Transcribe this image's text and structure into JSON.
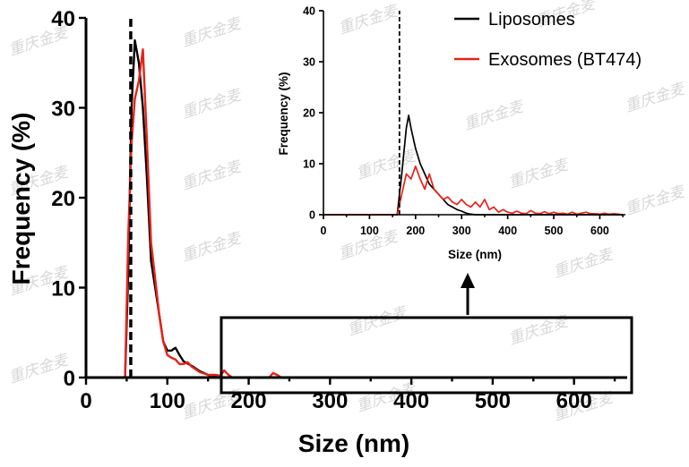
{
  "chart_data": [
    {
      "id": "main",
      "type": "line",
      "xlabel": "Size (nm)",
      "ylabel": "Frequency (%)",
      "xlim": [
        0,
        650
      ],
      "ylim": [
        0,
        40
      ],
      "xticks": [
        0,
        100,
        200,
        300,
        400,
        500,
        600
      ],
      "yticks": [
        0,
        10,
        20,
        30,
        40
      ],
      "xtick_labels": [
        "0",
        "100",
        "200",
        "300",
        "400",
        "500",
        "600"
      ],
      "ytick_labels": [
        "0",
        "10",
        "20",
        "30",
        "40"
      ],
      "reference_line_x": 55,
      "series": [
        {
          "name": "Liposomes",
          "color": "#000000",
          "points": [
            [
              0,
              0
            ],
            [
              48,
              0
            ],
            [
              52,
              12
            ],
            [
              56,
              30
            ],
            [
              60,
              37.5
            ],
            [
              65,
              35
            ],
            [
              70,
              30
            ],
            [
              75,
              22
            ],
            [
              80,
              13
            ],
            [
              85,
              10
            ],
            [
              90,
              7
            ],
            [
              95,
              4
            ],
            [
              100,
              3
            ],
            [
              105,
              3
            ],
            [
              110,
              3.3
            ],
            [
              115,
              2.5
            ],
            [
              120,
              1.8
            ],
            [
              130,
              1.3
            ],
            [
              140,
              0.7
            ],
            [
              150,
              0.3
            ],
            [
              160,
              0.1
            ],
            [
              170,
              0
            ],
            [
              650,
              0
            ]
          ]
        },
        {
          "name": "Exosomes (BT474)",
          "color": "#e8221b",
          "points": [
            [
              0,
              0
            ],
            [
              48,
              0
            ],
            [
              52,
              16
            ],
            [
              56,
              26
            ],
            [
              60,
              31
            ],
            [
              65,
              33
            ],
            [
              70,
              36.5
            ],
            [
              75,
              26
            ],
            [
              80,
              15
            ],
            [
              85,
              11
            ],
            [
              90,
              7
            ],
            [
              95,
              4
            ],
            [
              100,
              2.5
            ],
            [
              105,
              2.2
            ],
            [
              110,
              2
            ],
            [
              115,
              1.5
            ],
            [
              120,
              1.5
            ],
            [
              125,
              1.7
            ],
            [
              130,
              1.2
            ],
            [
              140,
              0.6
            ],
            [
              150,
              0.3
            ],
            [
              160,
              0.3
            ],
            [
              165,
              0.2
            ],
            [
              170,
              0.8
            ],
            [
              175,
              0.3
            ],
            [
              180,
              0
            ],
            [
              225,
              0
            ],
            [
              230,
              0.5
            ],
            [
              235,
              0.3
            ],
            [
              240,
              0
            ],
            [
              650,
              0
            ]
          ]
        }
      ]
    },
    {
      "id": "inset",
      "type": "line",
      "xlabel": "Size (nm)",
      "ylabel": "Frequency (%)",
      "xlim": [
        0,
        650
      ],
      "ylim": [
        0,
        40
      ],
      "xticks": [
        0,
        100,
        200,
        300,
        400,
        500,
        600
      ],
      "yticks": [
        0,
        10,
        20,
        30,
        40
      ],
      "xtick_labels": [
        "0",
        "100",
        "200",
        "300",
        "400",
        "500",
        "600"
      ],
      "ytick_labels": [
        "0",
        "10",
        "20",
        "30",
        "40"
      ],
      "reference_line_x": 165,
      "legend": {
        "placement": "top-right",
        "entries": [
          "Liposomes",
          "Exosomes (BT474)"
        ]
      },
      "series": [
        {
          "name": "Liposomes",
          "color": "#000000",
          "points": [
            [
              0,
              0
            ],
            [
              160,
              0
            ],
            [
              170,
              8
            ],
            [
              180,
              17
            ],
            [
              185,
              19.5
            ],
            [
              190,
              17
            ],
            [
              200,
              13
            ],
            [
              210,
              10
            ],
            [
              220,
              8
            ],
            [
              230,
              6
            ],
            [
              240,
              5
            ],
            [
              250,
              4
            ],
            [
              260,
              3
            ],
            [
              270,
              2
            ],
            [
              280,
              1.5
            ],
            [
              290,
              1
            ],
            [
              300,
              0.7
            ],
            [
              310,
              0.3
            ],
            [
              320,
              0.1
            ],
            [
              330,
              0
            ],
            [
              650,
              0
            ]
          ]
        },
        {
          "name": "Exosomes (BT474)",
          "color": "#e8221b",
          "points": [
            [
              0,
              0
            ],
            [
              160,
              0
            ],
            [
              170,
              4
            ],
            [
              180,
              8
            ],
            [
              190,
              7
            ],
            [
              200,
              9.5
            ],
            [
              210,
              7
            ],
            [
              220,
              5
            ],
            [
              230,
              8
            ],
            [
              240,
              5
            ],
            [
              250,
              4
            ],
            [
              260,
              3
            ],
            [
              270,
              3.5
            ],
            [
              280,
              2.5
            ],
            [
              290,
              2
            ],
            [
              300,
              3
            ],
            [
              310,
              2
            ],
            [
              320,
              1.5
            ],
            [
              330,
              2.5
            ],
            [
              340,
              1.5
            ],
            [
              350,
              3
            ],
            [
              360,
              1
            ],
            [
              370,
              1.5
            ],
            [
              380,
              0.5
            ],
            [
              390,
              1
            ],
            [
              400,
              0.5
            ],
            [
              410,
              0.3
            ],
            [
              420,
              0.7
            ],
            [
              430,
              0.3
            ],
            [
              440,
              0.2
            ],
            [
              450,
              0.8
            ],
            [
              460,
              0.3
            ],
            [
              470,
              0.2
            ],
            [
              480,
              0.6
            ],
            [
              490,
              0.2
            ],
            [
              500,
              0.5
            ],
            [
              510,
              0.2
            ],
            [
              520,
              0.3
            ],
            [
              530,
              0.1
            ],
            [
              540,
              0.5
            ],
            [
              550,
              0.1
            ],
            [
              560,
              0.3
            ],
            [
              570,
              0.5
            ],
            [
              580,
              0.2
            ],
            [
              590,
              0.2
            ],
            [
              600,
              0.1
            ],
            [
              610,
              0.3
            ],
            [
              620,
              0.1
            ],
            [
              630,
              0.2
            ],
            [
              640,
              0.1
            ],
            [
              650,
              0
            ]
          ]
        }
      ]
    }
  ],
  "watermark": "重庆金麦"
}
